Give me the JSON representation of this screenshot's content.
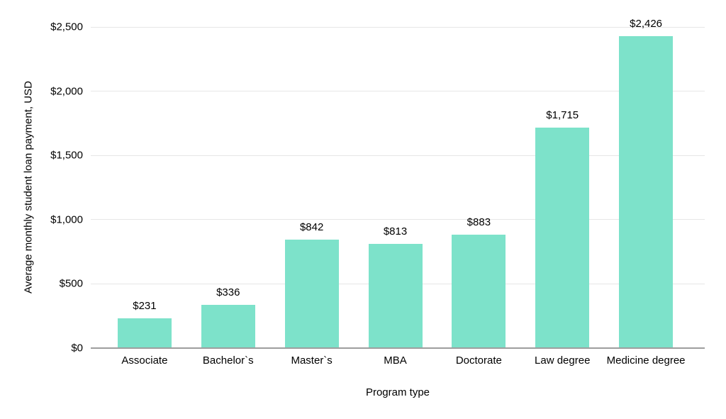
{
  "chart_data": {
    "type": "bar",
    "categories": [
      "Associate",
      "Bachelor`s",
      "Master`s",
      "MBA",
      "Doctorate",
      "Law degree",
      "Medicine degree"
    ],
    "values": [
      231,
      336,
      842,
      813,
      883,
      1715,
      2426
    ],
    "value_labels": [
      "$231",
      "$336",
      "$842",
      "$813",
      "$883",
      "$1,715",
      "$2,426"
    ],
    "xlabel": "Program type",
    "ylabel": "Average monthly student loan payment, USD",
    "ylim": [
      0,
      2500
    ],
    "yticks": [
      0,
      500,
      1000,
      1500,
      2000,
      2500
    ],
    "ytick_labels": [
      "$0",
      "$500",
      "$1,000",
      "$1,500",
      "$2,000",
      "$2,500"
    ],
    "grid": "horizontal",
    "legend": "none",
    "colors": {
      "bar": "#7de2ca",
      "gridline": "#e6e6e6",
      "axis_line": "#9e9e9e",
      "text": "#000000",
      "background": "#ffffff"
    }
  }
}
